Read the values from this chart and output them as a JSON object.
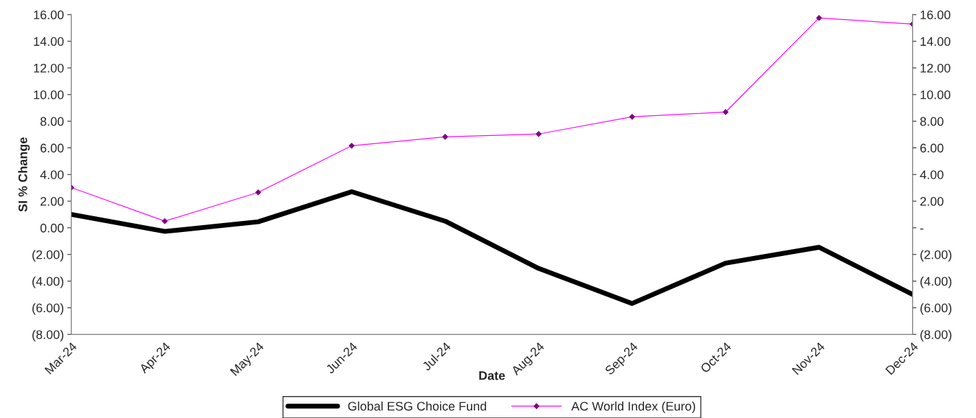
{
  "chart_data": {
    "type": "line",
    "xlabel": "Date",
    "ylabel": "SI % Change",
    "categories": [
      "Mar-24",
      "Apr-24",
      "May-24",
      "Jun-24",
      "Jul-24",
      "Aug-24",
      "Sep-24",
      "Oct-24",
      "Nov-24",
      "Dec-24"
    ],
    "series": [
      {
        "name": "Global ESG Choice Fund",
        "color": "#000000",
        "marker": "none",
        "values": [
          1.01,
          -0.27,
          0.45,
          2.71,
          0.5,
          -3.05,
          -5.68,
          -2.65,
          -1.46,
          -5.0
        ]
      },
      {
        "name": "AC World Index (Euro)",
        "color": "#ff00ff",
        "marker": "diamond",
        "values": [
          3.02,
          0.5,
          2.66,
          6.16,
          6.83,
          7.04,
          8.33,
          8.69,
          15.75,
          15.29
        ]
      }
    ],
    "ylim": [
      -8,
      16
    ],
    "yticks": [
      {
        "value": -8,
        "label": "(8.00)"
      },
      {
        "value": -6,
        "label": "(6.00)"
      },
      {
        "value": -4,
        "label": "(4.00)"
      },
      {
        "value": -2,
        "label": "(2.00)"
      },
      {
        "value": 0,
        "label": "0.00"
      },
      {
        "value": 2,
        "label": "2.00"
      },
      {
        "value": 4,
        "label": "4.00"
      },
      {
        "value": 6,
        "label": "6.00"
      },
      {
        "value": 8,
        "label": "8.00"
      },
      {
        "value": 10,
        "label": "10.00"
      },
      {
        "value": 12,
        "label": "12.00"
      },
      {
        "value": 14,
        "label": "14.00"
      },
      {
        "value": 16,
        "label": "16.00"
      }
    ],
    "y2lim": [
      -8,
      16
    ],
    "y2ticks": [
      {
        "value": -8,
        "label": "(8.00)"
      },
      {
        "value": -6,
        "label": "(6.00)"
      },
      {
        "value": -4,
        "label": "(4.00)"
      },
      {
        "value": -2,
        "label": "(2.00)"
      },
      {
        "value": 0,
        "label": "-"
      },
      {
        "value": 2,
        "label": "2.00"
      },
      {
        "value": 4,
        "label": "4.00"
      },
      {
        "value": 6,
        "label": "6.00"
      },
      {
        "value": 8,
        "label": "8.00"
      },
      {
        "value": 10,
        "label": "10.00"
      },
      {
        "value": 12,
        "label": "12.00"
      },
      {
        "value": 14,
        "label": "14.00"
      },
      {
        "value": 16,
        "label": "16.00"
      }
    ],
    "legend": "bottom",
    "grid": false
  }
}
